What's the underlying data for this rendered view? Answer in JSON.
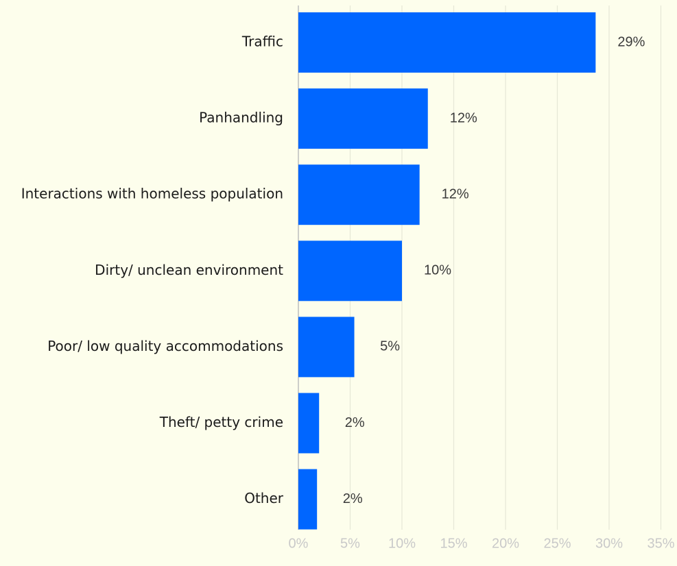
{
  "chart_data": {
    "type": "bar",
    "orientation": "horizontal",
    "categories": [
      "Traffic",
      "Panhandling",
      "Interactions with homeless population",
      "Dirty/ unclean environment",
      "Poor/ low quality accommodations",
      "Theft/ petty crime",
      "Other"
    ],
    "values": [
      28.7,
      12.5,
      11.7,
      10.0,
      5.4,
      2.0,
      1.8
    ],
    "value_labels": [
      "29%",
      "12%",
      "12%",
      "10%",
      "5%",
      "2%",
      "2%"
    ],
    "xlim": [
      0,
      35
    ],
    "x_ticks": [
      0,
      5,
      10,
      15,
      20,
      25,
      30,
      35
    ],
    "x_tick_labels": [
      "0%",
      "5%",
      "10%",
      "15%",
      "20%",
      "25%",
      "30%",
      "35%"
    ],
    "grid": true,
    "bar_color": "#0066ff",
    "background_color": "#fdfeec"
  }
}
